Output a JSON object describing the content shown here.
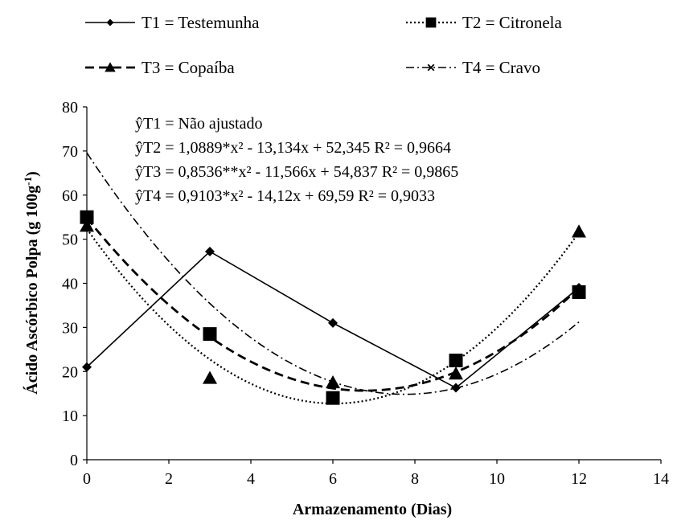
{
  "chart_data": {
    "type": "scatter",
    "xlabel": "Armazenamento (Dias)",
    "ylabel": "Ácido Ascórbico Polpa (g 100g",
    "ylabel_sup": "-1",
    "ylabel_close": ")",
    "xlim": [
      0,
      14
    ],
    "ylim": [
      0,
      80
    ],
    "xticks": [
      "0",
      "2",
      "4",
      "6",
      "8",
      "10",
      "12",
      "14"
    ],
    "yticks": [
      "0",
      "10",
      "20",
      "30",
      "40",
      "50",
      "60",
      "70",
      "80"
    ],
    "grid": false,
    "legend_position": "top",
    "series": [
      {
        "name": "T1 = Testemunha",
        "marker": "diamond",
        "line": "solid",
        "points": [
          [
            0,
            21
          ],
          [
            3,
            47.2
          ],
          [
            6,
            31
          ],
          [
            9,
            16.3
          ],
          [
            12,
            39
          ]
        ],
        "fit": null
      },
      {
        "name": "T2 = Citronela",
        "marker": "square",
        "line": "dotted",
        "points": [
          [
            0,
            55
          ],
          [
            3,
            28.5
          ],
          [
            6,
            14
          ],
          [
            9,
            22.5
          ],
          [
            12,
            38
          ]
        ],
        "fit": [
          1.0889,
          -13.134,
          52.345
        ]
      },
      {
        "name": "T3 = Copaíba",
        "marker": "triangle",
        "line": "dashed",
        "points": [
          [
            0,
            53
          ],
          [
            3,
            18.5
          ],
          [
            6,
            17.5
          ],
          [
            9,
            19.5
          ],
          [
            12,
            51.7
          ]
        ],
        "fit": [
          0.8536,
          -11.566,
          54.837
        ]
      },
      {
        "name": "T4 = Cravo",
        "marker": "x",
        "line": "dashdot",
        "points": [],
        "fit": [
          0.9103,
          -14.12,
          69.59
        ]
      }
    ],
    "equations": [
      "ŷT1 = Não ajustado",
      "ŷT2 = 1,0889*x² - 13,134x + 52,345 R² = 0,9664",
      "ŷT3 = 0,8536**x² - 11,566x + 54,837 R² = 0,9865",
      "ŷT4 = 0,9103*x² - 14,12x + 69,59 R² = 0,9033"
    ]
  }
}
